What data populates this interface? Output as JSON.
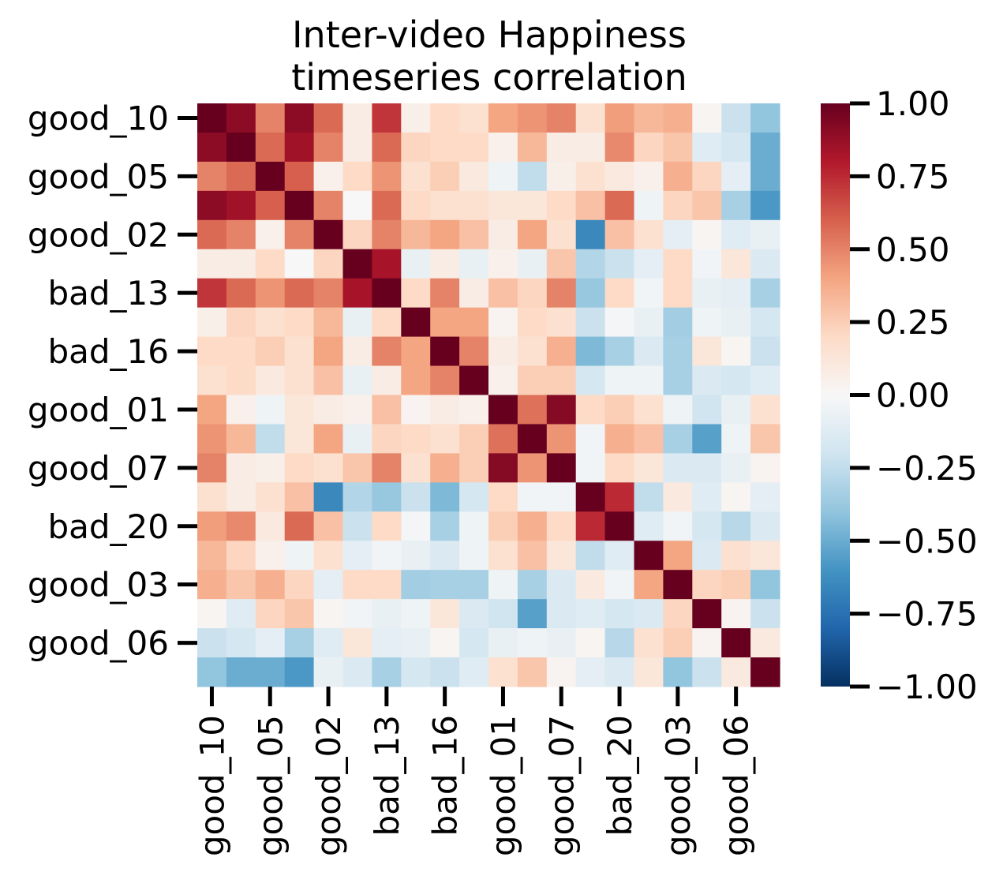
{
  "chart_data": {
    "type": "heatmap",
    "title_lines": [
      "Inter-video Happiness",
      "timeseries correlation"
    ],
    "row_tick_labels": [
      "good_10",
      "good_05",
      "good_02",
      "bad_13",
      "bad_16",
      "good_01",
      "good_07",
      "bad_20",
      "good_03",
      "good_06"
    ],
    "col_tick_labels": [
      "good_10",
      "good_05",
      "good_02",
      "bad_13",
      "bad_16",
      "good_01",
      "good_07",
      "bad_20",
      "good_03",
      "good_06"
    ],
    "n_rows": 20,
    "n_cols": 20,
    "values": [
      [
        1.0,
        0.9,
        0.5,
        0.9,
        0.57,
        0.08,
        0.72,
        0.06,
        0.2,
        0.16,
        0.4,
        0.45,
        0.5,
        0.16,
        0.42,
        0.33,
        0.36,
        0.02,
        -0.22,
        -0.4
      ],
      [
        0.9,
        1.0,
        0.57,
        0.85,
        0.5,
        0.08,
        0.57,
        0.22,
        0.2,
        0.2,
        0.05,
        0.33,
        0.08,
        0.08,
        0.48,
        0.22,
        0.28,
        -0.12,
        -0.18,
        -0.5
      ],
      [
        0.5,
        0.57,
        1.0,
        0.6,
        0.05,
        0.2,
        0.45,
        0.16,
        0.25,
        0.1,
        -0.05,
        -0.25,
        0.06,
        0.16,
        0.1,
        0.05,
        0.36,
        0.22,
        -0.1,
        -0.5
      ],
      [
        0.9,
        0.85,
        0.6,
        1.0,
        0.5,
        0.0,
        0.57,
        0.2,
        0.16,
        0.16,
        0.12,
        0.12,
        0.2,
        0.3,
        0.57,
        -0.05,
        0.22,
        0.28,
        -0.33,
        -0.58
      ],
      [
        0.57,
        0.5,
        0.05,
        0.5,
        1.0,
        0.22,
        0.5,
        0.33,
        0.4,
        0.3,
        0.08,
        0.4,
        0.16,
        -0.65,
        0.3,
        0.16,
        -0.1,
        0.02,
        -0.12,
        -0.08
      ],
      [
        0.08,
        0.08,
        0.2,
        0.0,
        0.22,
        1.0,
        0.83,
        -0.08,
        0.08,
        -0.08,
        0.05,
        -0.08,
        0.28,
        -0.3,
        -0.22,
        -0.1,
        0.2,
        -0.03,
        0.12,
        -0.15
      ],
      [
        0.72,
        0.57,
        0.45,
        0.57,
        0.5,
        0.83,
        1.0,
        0.2,
        0.5,
        0.08,
        0.3,
        0.22,
        0.5,
        -0.38,
        0.2,
        -0.03,
        0.2,
        -0.08,
        -0.1,
        -0.33
      ],
      [
        0.06,
        0.22,
        0.16,
        0.2,
        0.33,
        -0.08,
        0.2,
        1.0,
        0.4,
        0.4,
        0.03,
        0.2,
        0.16,
        -0.22,
        -0.02,
        -0.08,
        -0.35,
        -0.05,
        -0.08,
        -0.18
      ],
      [
        0.2,
        0.2,
        0.25,
        0.16,
        0.4,
        0.08,
        0.5,
        0.4,
        1.0,
        0.5,
        0.08,
        0.16,
        0.36,
        -0.45,
        -0.33,
        -0.15,
        -0.33,
        0.12,
        0.02,
        -0.22
      ],
      [
        0.16,
        0.2,
        0.1,
        0.16,
        0.3,
        -0.08,
        0.08,
        0.4,
        0.5,
        1.0,
        0.05,
        0.25,
        0.25,
        -0.18,
        -0.05,
        -0.05,
        -0.33,
        -0.15,
        -0.18,
        -0.12
      ],
      [
        0.4,
        0.05,
        -0.05,
        0.12,
        0.08,
        0.05,
        0.3,
        0.03,
        0.08,
        0.05,
        1.0,
        0.55,
        0.92,
        0.2,
        0.25,
        0.16,
        -0.05,
        -0.2,
        -0.08,
        0.16
      ],
      [
        0.45,
        0.33,
        -0.25,
        0.12,
        0.4,
        -0.08,
        0.22,
        0.2,
        0.16,
        0.25,
        0.55,
        1.0,
        0.45,
        -0.03,
        0.36,
        0.3,
        -0.33,
        -0.55,
        -0.05,
        0.28
      ],
      [
        0.5,
        0.08,
        0.06,
        0.2,
        0.16,
        0.28,
        0.5,
        0.16,
        0.36,
        0.25,
        0.92,
        0.45,
        1.0,
        -0.03,
        0.2,
        0.12,
        -0.15,
        -0.15,
        -0.08,
        0.03
      ],
      [
        0.16,
        0.08,
        0.16,
        0.3,
        -0.65,
        -0.3,
        -0.38,
        -0.22,
        -0.45,
        -0.18,
        0.2,
        -0.03,
        -0.03,
        1.0,
        0.75,
        -0.25,
        0.1,
        -0.12,
        0.02,
        -0.1
      ],
      [
        0.42,
        0.48,
        0.1,
        0.57,
        0.3,
        -0.22,
        0.2,
        -0.02,
        -0.33,
        -0.05,
        0.25,
        0.36,
        0.2,
        0.75,
        1.0,
        -0.12,
        -0.03,
        -0.18,
        -0.28,
        -0.15
      ],
      [
        0.33,
        0.22,
        0.05,
        -0.05,
        0.16,
        -0.1,
        -0.03,
        -0.08,
        -0.15,
        -0.05,
        0.16,
        0.3,
        0.12,
        -0.25,
        -0.12,
        1.0,
        0.4,
        -0.15,
        0.16,
        0.12
      ],
      [
        0.36,
        0.28,
        0.36,
        0.22,
        -0.1,
        0.2,
        0.2,
        -0.35,
        -0.33,
        -0.33,
        -0.05,
        -0.33,
        -0.15,
        0.1,
        -0.03,
        0.4,
        1.0,
        0.22,
        0.25,
        -0.4
      ],
      [
        0.02,
        -0.12,
        0.22,
        0.28,
        0.02,
        -0.03,
        -0.08,
        -0.05,
        0.12,
        -0.15,
        -0.2,
        -0.55,
        -0.15,
        -0.12,
        -0.18,
        -0.15,
        0.22,
        1.0,
        0.03,
        -0.22
      ],
      [
        -0.22,
        -0.18,
        -0.1,
        -0.33,
        -0.12,
        0.12,
        -0.1,
        -0.08,
        0.02,
        -0.18,
        -0.08,
        -0.05,
        -0.08,
        0.02,
        -0.28,
        0.16,
        0.25,
        0.03,
        1.0,
        0.1
      ],
      [
        -0.4,
        -0.5,
        -0.5,
        -0.58,
        -0.08,
        -0.15,
        -0.33,
        -0.18,
        -0.22,
        -0.12,
        0.16,
        0.28,
        0.03,
        -0.1,
        -0.15,
        0.12,
        -0.4,
        -0.22,
        0.1,
        1.0
      ]
    ],
    "vmin": -1.0,
    "vmax": 1.0,
    "colormap": "RdBu_r",
    "colorbar_ticks": [
      "1.00",
      "0.75",
      "0.50",
      "0.25",
      "0.00",
      "−0.25",
      "−0.50",
      "−0.75",
      "−1.00"
    ],
    "colorbar_tick_values": [
      1.0,
      0.75,
      0.5,
      0.25,
      0.0,
      -0.25,
      -0.5,
      -0.75,
      -1.0
    ],
    "colors": {
      "colormap_stops": [
        "#053061",
        "#2166ac",
        "#4393c3",
        "#92c5de",
        "#d1e5f0",
        "#f7f7f7",
        "#fddbc7",
        "#f4a582",
        "#d6604d",
        "#b2182b",
        "#67001f"
      ]
    }
  }
}
